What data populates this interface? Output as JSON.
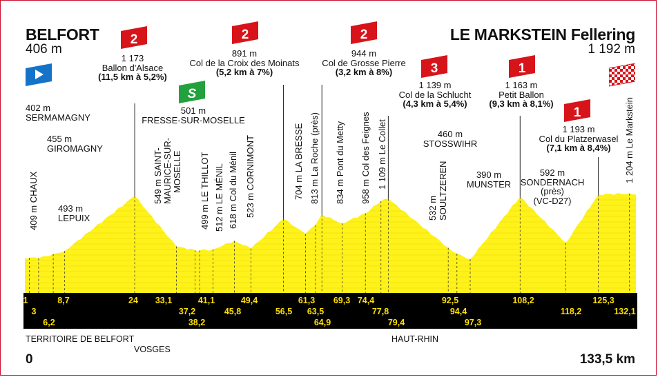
{
  "start": {
    "name": "BELFORT",
    "alt": "406 m",
    "km": "0"
  },
  "finish": {
    "name": "LE MARKSTEIN Fellering",
    "alt": "1 192 m",
    "km": "133,5 km"
  },
  "climbs": [
    {
      "cat": "2",
      "alt": "1 173",
      "name": "Ballon d'Alsace",
      "detail": "(11,5 km à 5,2%)"
    },
    {
      "cat": "2",
      "alt": "891 m",
      "name": "Col de la Croix des Moinats",
      "detail": "(5,2 km à 7%)"
    },
    {
      "cat": "2",
      "alt": "944 m",
      "name": "Col de Grosse Pierre",
      "detail": "(3,2 km à 8%)"
    },
    {
      "cat": "3",
      "alt": "1 139 m",
      "name": "Col de la Schlucht",
      "detail": "(4,3 km à 5,4%)"
    },
    {
      "cat": "1",
      "alt": "1 163 m",
      "name": "Petit Ballon",
      "detail": "(9,3 km à 8,1%)"
    },
    {
      "cat": "1",
      "alt": "1 193 m",
      "name": "Col du Platzerwasel",
      "detail": "(7,1 km à 8,4%)"
    }
  ],
  "sprint": {
    "symbol": "S",
    "alt": "501 m",
    "name": "FRESSE-SUR-MOSELLE"
  },
  "horizontal_labels": {
    "sermamagny_alt": "402 m",
    "sermamagny": "SERMAMAGNY",
    "giromagny_alt": "455 m",
    "giromagny": "GIROMAGNY",
    "lepuix_alt": "493 m",
    "lepuix": "LEPUIX",
    "stosswihr_alt": "460 m",
    "stosswihr": "STOSSWIHR",
    "munster_alt": "390 m",
    "munster": "MUNSTER",
    "sondernach_alt": "592 m",
    "sondernach": "SONDERNACH",
    "sondernach_pres": "(près)",
    "sondernach_road": "(VC-D27)"
  },
  "vertical_labels": [
    "409 m CHAUX",
    "549 m SAINT-",
    "MAURICE-SUR-",
    "MOSELLE",
    "499 m LE THILLOT",
    "512 m LE MÉNIL",
    "618 m Col du Ménil",
    "523 m CORNIMONT",
    "704 m LA BRESSE",
    "813 m La Roche (près)",
    "834 m Pont du Metty",
    "958 m Col des Feignes",
    "1 109 m Le Collet",
    "532 m",
    "SOULTZEREN",
    "1 204 m Le Markstein"
  ],
  "km_markers_top": [
    "1",
    "8,7",
    "24",
    "33,1",
    "41,1",
    "49,4",
    "61,3",
    "69,3",
    "74,4",
    "92,5",
    "108,2",
    "125,3"
  ],
  "km_markers_mid": [
    "3",
    "37,2",
    "45,8",
    "56,5",
    "63,5",
    "77,8",
    "94,4",
    "118,2",
    "132,1"
  ],
  "km_markers_low": [
    "6,2",
    "38,2",
    "64,9",
    "79,4",
    "97,3"
  ],
  "regions": [
    "TERRITOIRE DE BELFORT",
    "VOSGES",
    "HAUT-RHIN"
  ],
  "colors": {
    "profile": "#fff21b",
    "band": "#000000",
    "km_text": "#ffe000",
    "climb_flag": "#d7141a",
    "sprint_flag": "#23a13c",
    "start_flag": "#1473c9"
  },
  "chart_data": {
    "type": "area",
    "x_unit": "km",
    "y_unit": "m",
    "xlim": [
      0,
      133.5
    ],
    "points": [
      [
        0,
        406
      ],
      [
        1,
        409
      ],
      [
        3,
        402
      ],
      [
        6.2,
        455
      ],
      [
        8.7,
        493
      ],
      [
        24,
        1173
      ],
      [
        33.1,
        549
      ],
      [
        37.2,
        501
      ],
      [
        38.2,
        499
      ],
      [
        41.1,
        512
      ],
      [
        45.8,
        618
      ],
      [
        49.4,
        523
      ],
      [
        56.5,
        891
      ],
      [
        61.3,
        704
      ],
      [
        63.5,
        813
      ],
      [
        64.9,
        944
      ],
      [
        69.3,
        834
      ],
      [
        74.4,
        958
      ],
      [
        77.8,
        1109
      ],
      [
        79.4,
        1139
      ],
      [
        92.5,
        532
      ],
      [
        94.4,
        460
      ],
      [
        97.3,
        390
      ],
      [
        108.2,
        1163
      ],
      [
        118.2,
        592
      ],
      [
        125.3,
        1193
      ],
      [
        132.1,
        1204
      ],
      [
        133.5,
        1192
      ]
    ]
  }
}
